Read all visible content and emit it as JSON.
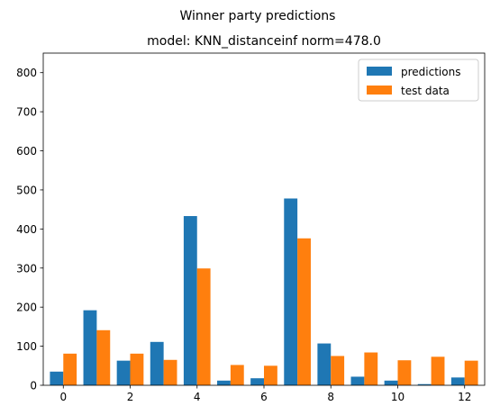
{
  "chart_data": {
    "type": "bar",
    "suptitle": "Winner party predictions",
    "title": "model: KNN_distanceinf norm=478.0",
    "xlabel": "",
    "ylabel": "",
    "xlim": [
      -0.6,
      12.6
    ],
    "ylim": [
      0,
      850
    ],
    "xticks": [
      0,
      2,
      4,
      6,
      8,
      10,
      12
    ],
    "yticks": [
      0,
      100,
      200,
      300,
      400,
      500,
      600,
      700,
      800
    ],
    "legend_position": "top-right",
    "series": [
      {
        "name": "predictions",
        "color": "#1f77b4",
        "x": [
          0,
          1,
          2,
          3,
          4,
          5,
          6,
          7,
          8,
          9,
          10,
          11,
          12
        ],
        "values": [
          35,
          192,
          63,
          111,
          433,
          12,
          18,
          478,
          107,
          22,
          12,
          3,
          20
        ]
      },
      {
        "name": "test data",
        "color": "#ff7f0e",
        "x": [
          0,
          1,
          2,
          3,
          4,
          5,
          6,
          7,
          8,
          9,
          10,
          11,
          12
        ],
        "values": [
          81,
          141,
          81,
          65,
          299,
          52,
          50,
          376,
          75,
          84,
          64,
          73,
          63
        ]
      }
    ]
  }
}
